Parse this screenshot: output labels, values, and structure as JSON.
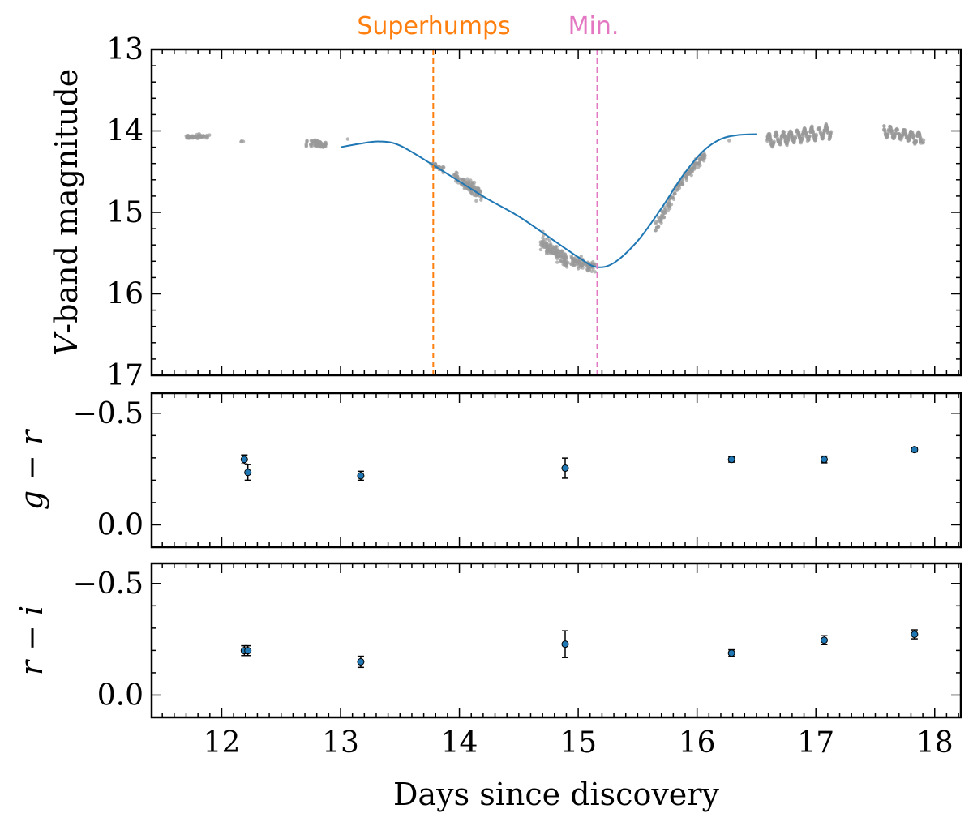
{
  "chart_data": [
    {
      "type": "scatter",
      "panel": "top",
      "ylabel_italic": "V",
      "ylabel": "-band magnitude",
      "xlim": [
        11.41,
        18.22
      ],
      "ylim": [
        17,
        13
      ],
      "y_inverted": true,
      "yticks": [
        13,
        14,
        15,
        16,
        17
      ],
      "grid": false,
      "point_color": "#999999",
      "curve_color": "#1f77b4",
      "light_curve_segments": [
        {
          "x": [
            11.7,
            11.9
          ],
          "mag": [
            14.07,
            14.07
          ],
          "scatter": 0.02,
          "n": 50
        },
        {
          "x": [
            12.16,
            12.21
          ],
          "mag": [
            14.12,
            14.15
          ],
          "scatter": 0.01,
          "n": 3
        },
        {
          "x": [
            12.71,
            12.88
          ],
          "mag": [
            14.15,
            14.17
          ],
          "scatter": 0.04,
          "n": 60
        },
        {
          "x": [
            13.06,
            13.06
          ],
          "mag": [
            14.1,
            14.1
          ],
          "scatter": 0.0,
          "n": 1
        },
        {
          "x": [
            13.76,
            13.87
          ],
          "mag": [
            14.4,
            14.48
          ],
          "scatter": 0.03,
          "n": 30
        },
        {
          "x": [
            13.95,
            14.19
          ],
          "mag": [
            14.55,
            14.78
          ],
          "scatter": 0.06,
          "n": 120
        },
        {
          "x": [
            14.68,
            14.92
          ],
          "mag": [
            15.35,
            15.62
          ],
          "scatter": 0.08,
          "n": 130
        },
        {
          "x": [
            14.94,
            15.15
          ],
          "mag": [
            15.58,
            15.68
          ],
          "scatter": 0.05,
          "n": 90
        },
        {
          "x": [
            15.65,
            15.82
          ],
          "mag": [
            15.2,
            14.72
          ],
          "scatter": 0.07,
          "n": 60
        },
        {
          "x": [
            15.82,
            16.07
          ],
          "mag": [
            14.72,
            14.28
          ],
          "scatter": 0.05,
          "n": 100
        },
        {
          "x": [
            16.27,
            16.27
          ],
          "mag": [
            14.12,
            14.12
          ],
          "scatter": 0.0,
          "n": 1
        },
        {
          "x": [
            16.59,
            17.13
          ],
          "mag": [
            14.12,
            14.0
          ],
          "scatter": 0.02,
          "n": 300,
          "oscillation_amp": 0.07,
          "oscillation_period": 0.06
        },
        {
          "x": [
            17.57,
            17.91
          ],
          "mag": [
            14.0,
            14.1
          ],
          "scatter": 0.02,
          "n": 180,
          "oscillation_amp": 0.06,
          "oscillation_period": 0.06
        }
      ],
      "model_curve": {
        "x": [
          13.0,
          13.15,
          13.33,
          13.5,
          13.78,
          14.0,
          14.23,
          14.5,
          14.78,
          15.0,
          15.15,
          15.3,
          15.5,
          15.7,
          15.88,
          16.05,
          16.2,
          16.35,
          16.5
        ],
        "y": [
          14.2,
          14.16,
          14.13,
          14.18,
          14.42,
          14.62,
          14.83,
          15.05,
          15.33,
          15.55,
          15.67,
          15.62,
          15.35,
          14.95,
          14.55,
          14.25,
          14.1,
          14.05,
          14.04
        ]
      },
      "vlines": [
        {
          "x": 13.78,
          "label": "Superhumps",
          "color": "#ff7f0e"
        },
        {
          "x": 15.16,
          "label": "Min.",
          "color": "#e377c2"
        }
      ]
    },
    {
      "type": "scatter",
      "panel": "middle",
      "ylabel": "g − r",
      "ylim": [
        0.1,
        -0.59
      ],
      "y_inverted": true,
      "yticks": [
        -0.5,
        0.0
      ],
      "ytick_labels": [
        "−0.5",
        "0.0"
      ],
      "point_color": "#1f77b4",
      "x": [
        12.19,
        12.22,
        13.17,
        14.89,
        16.29,
        17.07,
        17.83
      ],
      "y": [
        -0.293,
        -0.235,
        -0.22,
        -0.254,
        -0.293,
        -0.293,
        -0.337
      ],
      "yerr": [
        0.02,
        0.035,
        0.02,
        0.045,
        0.012,
        0.015,
        0.01
      ]
    },
    {
      "type": "scatter",
      "panel": "bottom",
      "ylabel": "r − i",
      "ylim": [
        0.1,
        -0.59
      ],
      "y_inverted": true,
      "yticks": [
        -0.5,
        0.0
      ],
      "ytick_labels": [
        "−0.5",
        "0.0"
      ],
      "point_color": "#1f77b4",
      "x": [
        12.19,
        12.22,
        13.17,
        14.89,
        16.29,
        17.07,
        17.83
      ],
      "y": [
        -0.199,
        -0.199,
        -0.149,
        -0.228,
        -0.188,
        -0.246,
        -0.272
      ],
      "yerr": [
        0.022,
        0.022,
        0.025,
        0.06,
        0.015,
        0.02,
        0.02
      ],
      "xlabel": "Days since discovery",
      "xticks": [
        12,
        13,
        14,
        15,
        16,
        17,
        18
      ]
    }
  ]
}
